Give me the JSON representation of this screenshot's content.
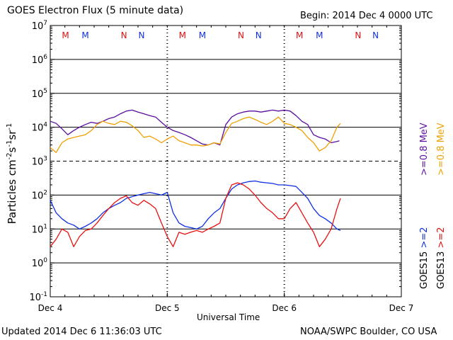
{
  "header": {
    "title": "GOES Electron Flux (5 minute data)",
    "begin": "Begin: 2014 Dec 4 0000 UTC"
  },
  "footer": {
    "updated": "Updated 2014 Dec  6 11:36:03 UTC",
    "credit": "NOAA/SWPC Boulder, CO USA"
  },
  "colors": {
    "goes15_ge08": "#5a0ea0",
    "goes13_ge08": "#f0a000",
    "goes15_ge2": "#1030e0",
    "goes13_ge2": "#e81010",
    "marker_M_red": "#e01010",
    "marker_M_blue": "#1030e0"
  },
  "chart_data": {
    "type": "line",
    "title": "GOES Electron Flux (5 minute data)",
    "xlabel": "Universal Time",
    "ylabel": "Particles cm-2s-1sr-1",
    "x_unit": "days since 2014 Dec 4 0000 UTC",
    "xlim": [
      0,
      3
    ],
    "x_ticks": [
      {
        "x": 0,
        "label": "Dec 4"
      },
      {
        "x": 1,
        "label": "Dec 5"
      },
      {
        "x": 2,
        "label": "Dec 6"
      },
      {
        "x": 3,
        "label": "Dec 7"
      }
    ],
    "ylim_log10": [
      -1,
      7
    ],
    "y_ticks": [
      {
        "exp": 7,
        "label": "10",
        "sup": "7"
      },
      {
        "exp": 6,
        "label": "10",
        "sup": "6"
      },
      {
        "exp": 5,
        "label": "10",
        "sup": "5"
      },
      {
        "exp": 4,
        "label": "10",
        "sup": "4"
      },
      {
        "exp": 3,
        "label": "10",
        "sup": "3"
      },
      {
        "exp": 2,
        "label": "10",
        "sup": "2"
      },
      {
        "exp": 1,
        "label": "10",
        "sup": "1"
      },
      {
        "exp": 0,
        "label": "10",
        "sup": "0"
      },
      {
        "exp": -1,
        "label": "10",
        "sup": "-1"
      }
    ],
    "grid": "solid horizontal lines at each decade; dashed line at 10^3",
    "day_separators": "dotted vertical lines at each day boundary",
    "legend": [
      {
        "sat": "GOES15",
        "label": ">=2",
        "color": "#1030e0"
      },
      {
        "sat": "GOES13",
        "label": ">=2",
        "color": "#e81010"
      },
      {
        "sat": "",
        "label": ">=0.8  MeV",
        "color": "#5a0ea0"
      },
      {
        "sat": "",
        "label": ">=0.8  MeV",
        "color": "#f0a000"
      }
    ],
    "markers": [
      {
        "x": 0.13,
        "label": "M",
        "color": "#e01010"
      },
      {
        "x": 0.3,
        "label": "M",
        "color": "#1030e0"
      },
      {
        "x": 0.63,
        "label": "N",
        "color": "#e01010"
      },
      {
        "x": 0.78,
        "label": "N",
        "color": "#1030e0"
      },
      {
        "x": 1.13,
        "label": "M",
        "color": "#e01010"
      },
      {
        "x": 1.3,
        "label": "M",
        "color": "#1030e0"
      },
      {
        "x": 1.63,
        "label": "N",
        "color": "#e01010"
      },
      {
        "x": 1.78,
        "label": "N",
        "color": "#1030e0"
      },
      {
        "x": 2.13,
        "label": "M",
        "color": "#e01010"
      },
      {
        "x": 2.3,
        "label": "M",
        "color": "#1030e0"
      },
      {
        "x": 2.63,
        "label": "N",
        "color": "#e01010"
      },
      {
        "x": 2.78,
        "label": "N",
        "color": "#1030e0"
      }
    ],
    "series": [
      {
        "name": "GOES15 >=0.8 MeV",
        "color": "#5a0ea0",
        "x": [
          0,
          0.05,
          0.1,
          0.15,
          0.2,
          0.25,
          0.3,
          0.35,
          0.4,
          0.45,
          0.5,
          0.55,
          0.6,
          0.65,
          0.7,
          0.75,
          0.8,
          0.85,
          0.9,
          0.95,
          1.0,
          1.05,
          1.1,
          1.15,
          1.2,
          1.25,
          1.3,
          1.35,
          1.4,
          1.45,
          1.5,
          1.55,
          1.6,
          1.65,
          1.7,
          1.75,
          1.8,
          1.85,
          1.9,
          1.95,
          2.0,
          2.05,
          2.1,
          2.15,
          2.2,
          2.25,
          2.3,
          2.35,
          2.4,
          2.45,
          2.47
        ],
        "y": [
          15000,
          13000,
          9000,
          6000,
          8000,
          10000,
          12000,
          14000,
          13000,
          15000,
          18000,
          20000,
          25000,
          30000,
          32000,
          28000,
          25000,
          22000,
          20000,
          14000,
          10000,
          8000,
          7000,
          6000,
          5000,
          4000,
          3200,
          3000,
          3500,
          3000,
          12000,
          20000,
          25000,
          28000,
          30000,
          30000,
          28000,
          30000,
          32000,
          30000,
          32000,
          30000,
          22000,
          15000,
          12000,
          6000,
          5000,
          4500,
          3500,
          3800,
          4000
        ]
      },
      {
        "name": "GOES13 >=0.8 MeV",
        "color": "#f0a000",
        "x": [
          0,
          0.05,
          0.1,
          0.15,
          0.2,
          0.25,
          0.3,
          0.35,
          0.4,
          0.45,
          0.5,
          0.55,
          0.6,
          0.65,
          0.7,
          0.75,
          0.8,
          0.85,
          0.9,
          0.95,
          1.0,
          1.05,
          1.1,
          1.15,
          1.2,
          1.25,
          1.3,
          1.35,
          1.4,
          1.45,
          1.5,
          1.55,
          1.6,
          1.65,
          1.7,
          1.75,
          1.8,
          1.85,
          1.9,
          1.95,
          2.0,
          2.05,
          2.1,
          2.15,
          2.2,
          2.25,
          2.3,
          2.35,
          2.4,
          2.45,
          2.48
        ],
        "y": [
          2500,
          1800,
          3500,
          4500,
          5000,
          5500,
          6000,
          8000,
          12000,
          15000,
          13000,
          12000,
          15000,
          14000,
          11000,
          8000,
          5000,
          5500,
          4500,
          3500,
          4500,
          5500,
          4000,
          3500,
          3000,
          3000,
          2800,
          3000,
          3500,
          3200,
          7000,
          13000,
          15000,
          18000,
          20000,
          17000,
          14000,
          12000,
          15000,
          20000,
          13000,
          12000,
          10000,
          8000,
          5000,
          3500,
          2000,
          2500,
          4000,
          10000,
          13000
        ]
      },
      {
        "name": "GOES15 >=2 MeV",
        "color": "#1030e0",
        "x": [
          0,
          0.05,
          0.1,
          0.15,
          0.2,
          0.25,
          0.3,
          0.35,
          0.4,
          0.45,
          0.5,
          0.55,
          0.6,
          0.65,
          0.7,
          0.75,
          0.8,
          0.85,
          0.9,
          0.95,
          1.0,
          1.05,
          1.1,
          1.15,
          1.2,
          1.25,
          1.3,
          1.35,
          1.4,
          1.45,
          1.5,
          1.55,
          1.6,
          1.65,
          1.7,
          1.75,
          1.8,
          1.85,
          1.9,
          1.95,
          2.0,
          2.05,
          2.1,
          2.15,
          2.2,
          2.25,
          2.3,
          2.35,
          2.4,
          2.45,
          2.48
        ],
        "y": [
          70,
          30,
          20,
          15,
          13,
          10,
          12,
          15,
          20,
          30,
          40,
          50,
          60,
          80,
          90,
          100,
          110,
          120,
          110,
          100,
          120,
          30,
          15,
          12,
          11,
          10,
          12,
          20,
          30,
          40,
          80,
          150,
          200,
          230,
          250,
          260,
          240,
          230,
          220,
          200,
          200,
          190,
          180,
          120,
          80,
          40,
          25,
          20,
          15,
          10,
          9
        ]
      },
      {
        "name": "GOES13 >=2 MeV",
        "color": "#e81010",
        "x": [
          0,
          0.05,
          0.1,
          0.15,
          0.2,
          0.25,
          0.3,
          0.35,
          0.4,
          0.45,
          0.5,
          0.55,
          0.6,
          0.65,
          0.7,
          0.75,
          0.8,
          0.85,
          0.9,
          0.95,
          1.0,
          1.05,
          1.1,
          1.15,
          1.2,
          1.25,
          1.3,
          1.35,
          1.4,
          1.45,
          1.5,
          1.55,
          1.6,
          1.65,
          1.7,
          1.75,
          1.8,
          1.85,
          1.9,
          1.95,
          2.0,
          2.05,
          2.1,
          2.15,
          2.2,
          2.25,
          2.3,
          2.35,
          2.4,
          2.45,
          2.48
        ],
        "y": [
          3,
          5,
          10,
          8,
          3,
          6,
          9,
          10,
          15,
          25,
          40,
          60,
          80,
          95,
          60,
          50,
          70,
          55,
          40,
          15,
          6,
          3,
          8,
          7,
          8,
          9,
          8,
          10,
          12,
          15,
          80,
          200,
          230,
          200,
          150,
          100,
          60,
          40,
          30,
          20,
          20,
          40,
          60,
          30,
          15,
          8,
          3,
          5,
          10,
          40,
          80
        ]
      }
    ]
  }
}
